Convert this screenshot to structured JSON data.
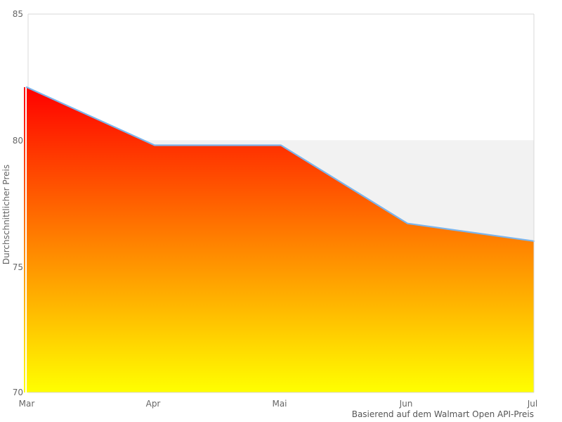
{
  "chart_data": {
    "type": "area",
    "categories": [
      "Mar",
      "Apr",
      "Mai",
      "Jun",
      "Jul"
    ],
    "values": [
      82.1,
      79.8,
      79.8,
      76.7,
      76.0
    ],
    "title": "",
    "xlabel": "",
    "ylabel": "Durchschnittlicher Preis",
    "caption": "Basierend auf dem Walmart Open API-Preis",
    "ylim": [
      70,
      85
    ],
    "yticks": [
      70,
      75,
      80,
      85
    ],
    "ytick_labels": [
      "85",
      "80",
      "75",
      "70"
    ],
    "grid": false,
    "legend": false,
    "plot_band": {
      "from": 70,
      "to": 80,
      "color": "#f2f2f2"
    },
    "colors": {
      "line": "#7cb5ec",
      "area_gradient_top": "#ff0000",
      "area_gradient_bottom": "#ffff00",
      "border": "#d8d8d8",
      "text": "#666666"
    }
  }
}
